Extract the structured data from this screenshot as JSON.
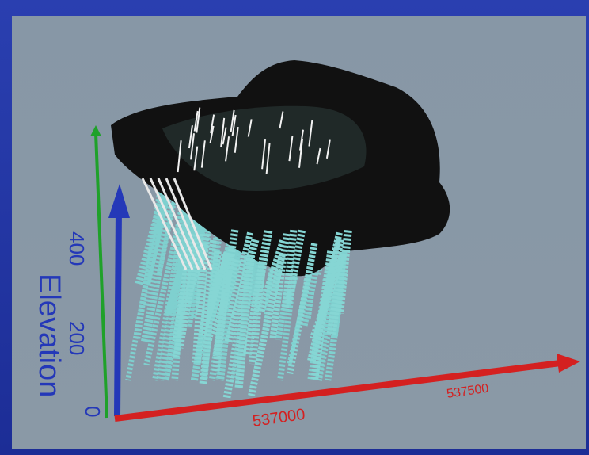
{
  "view": {
    "z_axis": {
      "label": "Elevation",
      "ticks": [
        400,
        200,
        0
      ]
    },
    "x_axis": {
      "ticks": [
        537000,
        537500
      ]
    }
  }
}
